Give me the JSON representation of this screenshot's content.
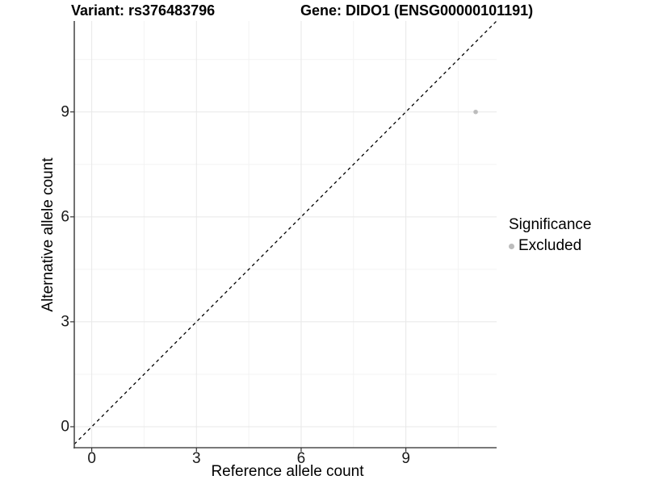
{
  "chart_data": {
    "type": "scatter",
    "title_left": "Variant: rs376483796",
    "title_right": "Gene: DIDO1 (ENSG00000101191)",
    "xlabel": "Reference allele count",
    "ylabel": "Alternative allele count",
    "x_ticks": [
      0,
      3,
      6,
      9
    ],
    "y_ticks": [
      0,
      3,
      6,
      9
    ],
    "x_minor": [
      1.5,
      4.5,
      7.5,
      10.5
    ],
    "y_minor": [
      1.5,
      4.5,
      7.5,
      10.5
    ],
    "xlim": [
      -0.5,
      11.6
    ],
    "ylim": [
      -0.6,
      11.6
    ],
    "grid": true,
    "legend_position": "right",
    "reference_line": {
      "slope": 1,
      "intercept": 0,
      "style": "dashed"
    },
    "points": [
      {
        "x": 11,
        "y": 9,
        "significance": "Excluded"
      }
    ],
    "legend": {
      "title": "Significance",
      "entries": [
        {
          "label": "Excluded",
          "color": "#bcbcbc"
        }
      ]
    },
    "colors": {
      "background": "#ffffff",
      "grid_major": "#e8e8e8",
      "grid_minor": "#f3f3f3",
      "axis_line": "#4d4d4d",
      "tick_mark": "#333333",
      "reference_line": "#000000",
      "point": "#bcbcbc",
      "text": "#000000"
    }
  }
}
